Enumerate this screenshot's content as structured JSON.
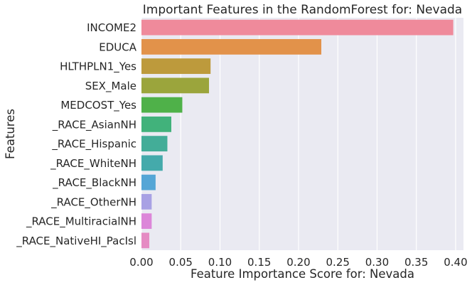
{
  "chart_data": {
    "type": "bar",
    "orientation": "horizontal",
    "title": "Important Features in the RandomForest for: Nevada",
    "xlabel": "Feature Importance Score for: Nevada",
    "ylabel": "Features",
    "xlim": [
      0,
      0.41
    ],
    "xticks": [
      "0.00",
      "0.05",
      "0.10",
      "0.15",
      "0.20",
      "0.25",
      "0.30",
      "0.35",
      "0.40"
    ],
    "grid": true,
    "categories": [
      "INCOME2",
      "EDUCA",
      "HLTHPLN1_Yes",
      "SEX_Male",
      "MEDCOST_Yes",
      "_RACE_AsianNH",
      "_RACE_Hispanic",
      "_RACE_WhiteNH",
      "_RACE_BlackNH",
      "_RACE_OtherNH",
      "_RACE_MultiracialNH",
      "_RACE_NativeHI_PacIsl"
    ],
    "values": [
      0.397,
      0.229,
      0.088,
      0.086,
      0.052,
      0.038,
      0.033,
      0.027,
      0.018,
      0.013,
      0.013,
      0.01
    ],
    "colors": [
      "#ef8a9b",
      "#e2924a",
      "#bd9a3c",
      "#9ba53c",
      "#4fb149",
      "#41b27b",
      "#43ad98",
      "#44aaab",
      "#55a6d6",
      "#a8a1e4",
      "#dc86d9",
      "#e58bc3"
    ]
  }
}
